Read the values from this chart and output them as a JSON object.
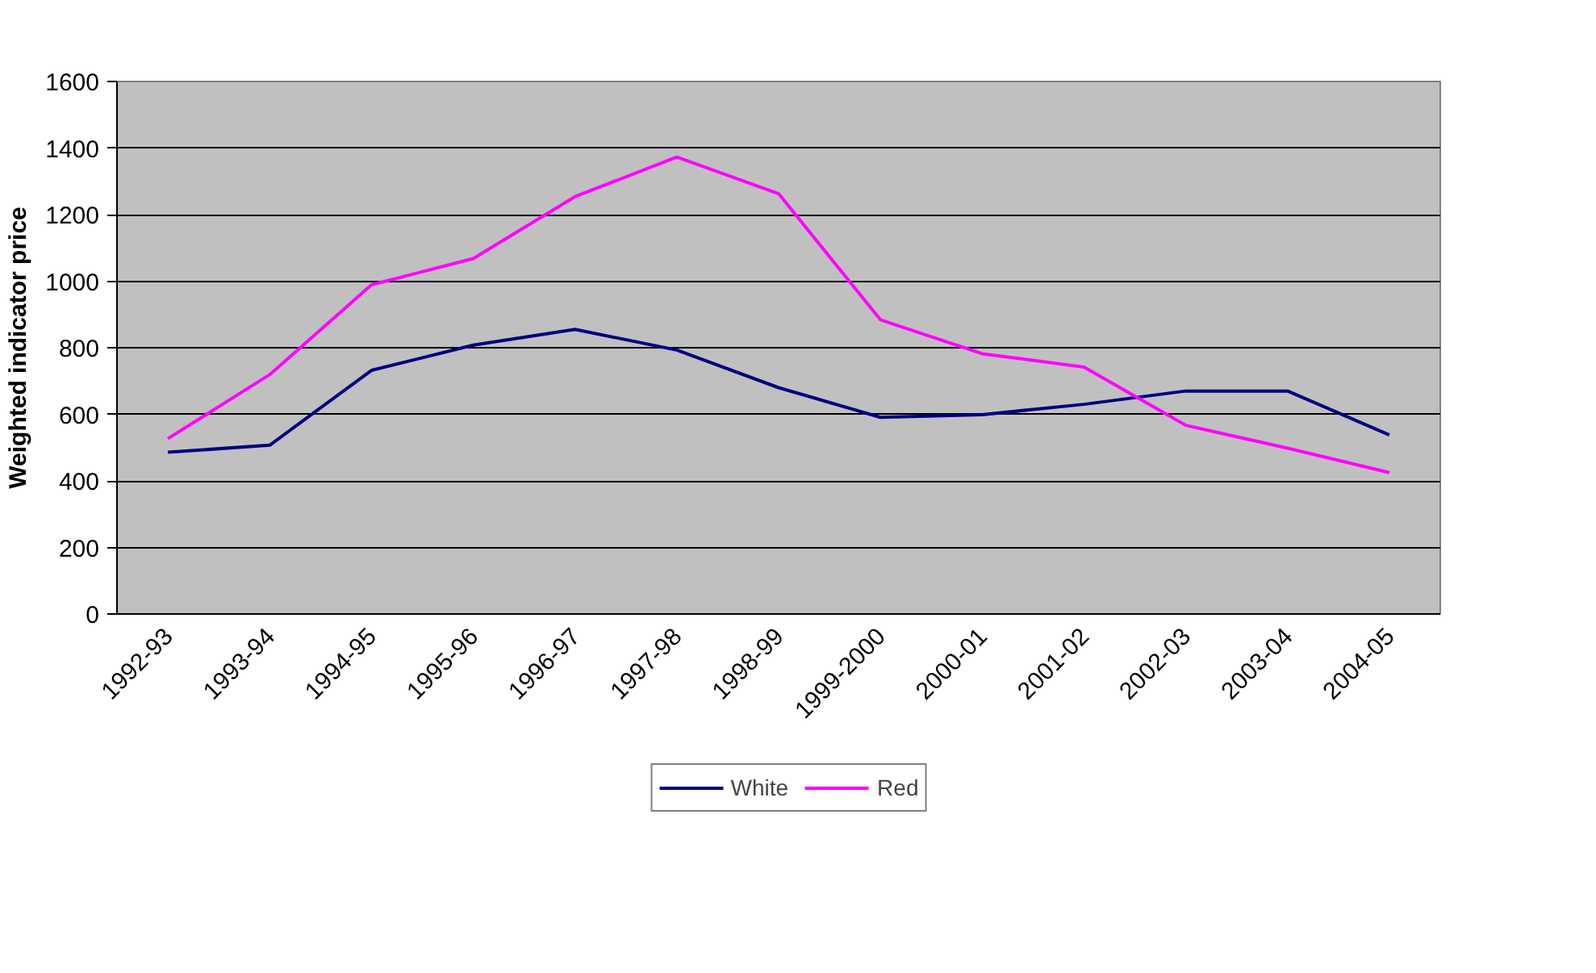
{
  "chart_data": {
    "type": "line",
    "ylabel": "Weighted indicator price",
    "categories": [
      "1992-93",
      "1993-94",
      "1994-95",
      "1995-96",
      "1996-97",
      "1997-98",
      "1998-99",
      "1999-2000",
      "2000-01",
      "2001-02",
      "2002-03",
      "2003-04",
      "2004-05"
    ],
    "series": [
      {
        "name": "White",
        "color": "#000080",
        "values": [
          486,
          507,
          732,
          808,
          855,
          793,
          680,
          591,
          599,
          630,
          670,
          670,
          538
        ]
      },
      {
        "name": "Red",
        "color": "#ff00ff",
        "values": [
          527,
          719,
          989,
          1068,
          1254,
          1373,
          1263,
          884,
          782,
          742,
          567,
          498,
          425
        ]
      }
    ],
    "ylim": [
      0,
      1600
    ],
    "yticks": [
      0,
      200,
      400,
      600,
      800,
      1000,
      1200,
      1400,
      1600
    ],
    "grid": "y",
    "legend": "bottom",
    "marker": "none",
    "line_style": "solid"
  }
}
